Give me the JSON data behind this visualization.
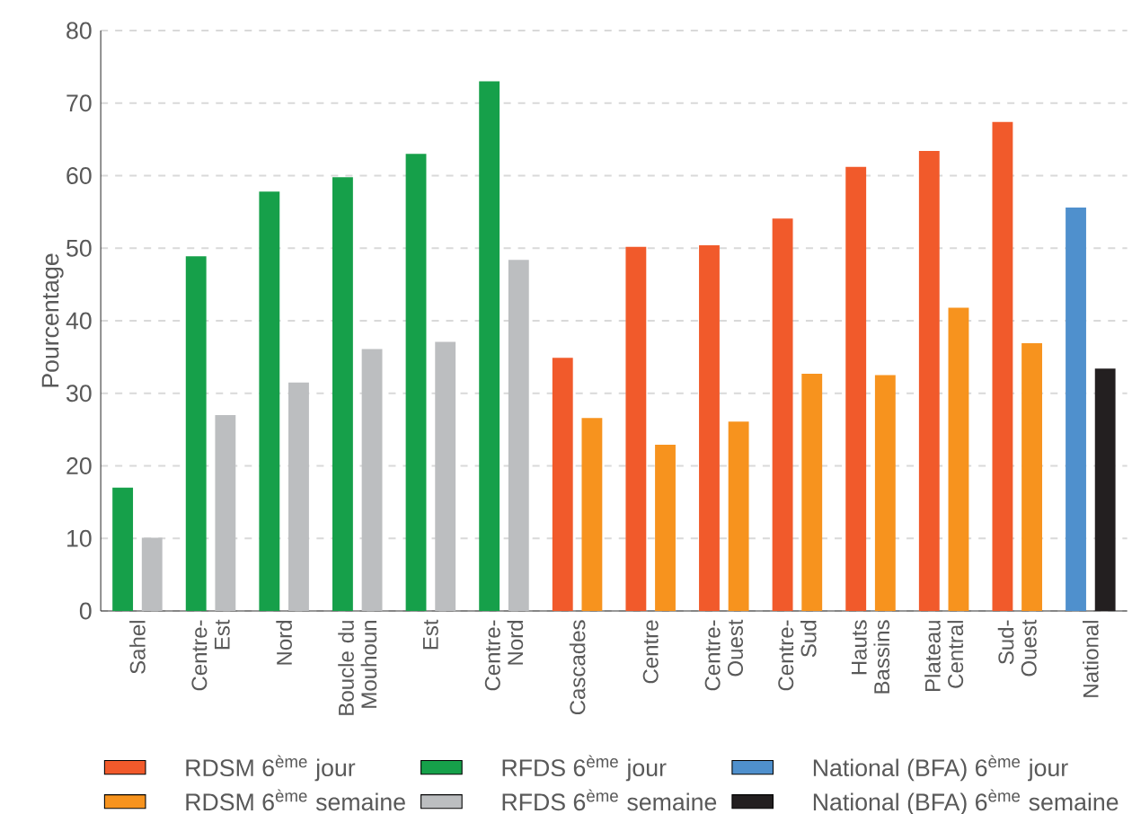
{
  "chart_data": {
    "type": "bar",
    "ylabel": "Pourcentage",
    "categories": [
      "Sahel",
      "Centre-Est",
      "Nord",
      "Boucle du Mouhoun",
      "Est",
      "Centre-Nord",
      "Cascades",
      "Centre",
      "Centre-Ouest",
      "Centre-Sud",
      "Hauts Bassins",
      "Plateau Central",
      "Sud-Ouest",
      "National"
    ],
    "series": [
      {
        "name": "RDSM 6$^{ème}$ jour",
        "color": "#f15a2b",
        "values": [
          null,
          null,
          null,
          null,
          null,
          null,
          34.9,
          50.2,
          50.4,
          54.1,
          61.2,
          63.4,
          67.4,
          null
        ]
      },
      {
        "name": "RFDS 6$^{ème}$ jour",
        "color": "#16a04a",
        "values": [
          17.0,
          48.9,
          57.8,
          59.8,
          63.0,
          73.0,
          null,
          null,
          null,
          null,
          null,
          null,
          null,
          null
        ]
      },
      {
        "name": "National (BFA) 6$^{ème}$ jour",
        "color": "#4f90cd",
        "values": [
          null,
          null,
          null,
          null,
          null,
          null,
          null,
          null,
          null,
          null,
          null,
          null,
          null,
          55.6
        ]
      },
      {
        "name": "RDSM 6$^{ème}$ semaine",
        "color": "#f7931e",
        "values": [
          null,
          null,
          null,
          null,
          null,
          null,
          26.6,
          22.9,
          26.1,
          32.7,
          32.5,
          41.8,
          36.9,
          null
        ]
      },
      {
        "name": "RFDS 6$^{ème}$ semaine",
        "color": "#bcbec0",
        "values": [
          10.1,
          27.0,
          31.5,
          36.1,
          37.1,
          48.4,
          null,
          null,
          null,
          null,
          null,
          null,
          null,
          null
        ]
      },
      {
        "name": "National (BFA) 6$^{ème}$ semaine",
        "color": "#231f20",
        "values": [
          null,
          null,
          null,
          null,
          null,
          null,
          null,
          null,
          null,
          null,
          null,
          null,
          null,
          33.4
        ]
      }
    ],
    "ylim": [
      0,
      80
    ],
    "yticks": [
      0,
      10,
      20,
      30,
      40,
      50,
      60,
      70,
      80
    ],
    "grid": "y",
    "legend": "bottom"
  }
}
